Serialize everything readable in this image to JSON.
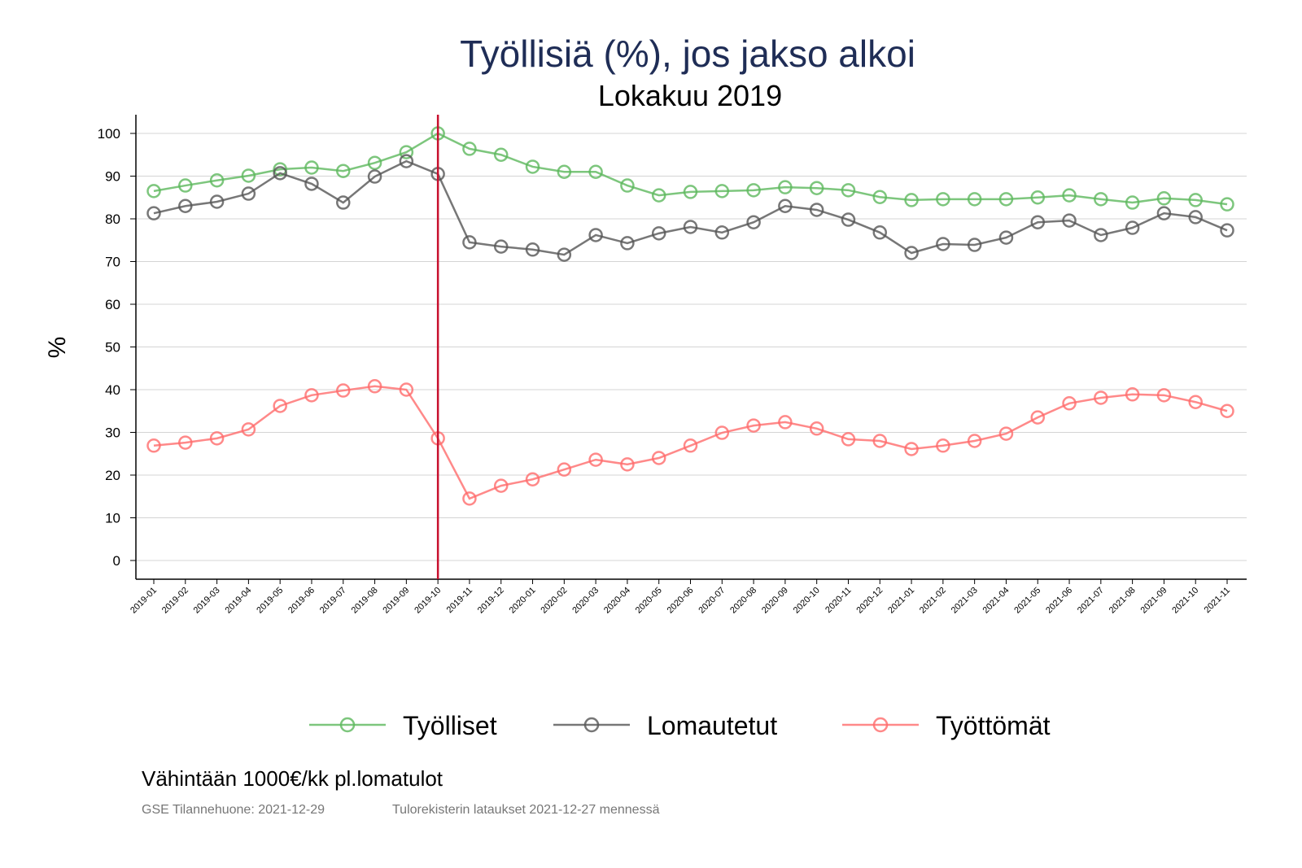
{
  "chart_data": {
    "type": "line",
    "title": "Työllisiä (%), jos jakso alkoi",
    "subtitle": "Lokakuu 2019",
    "xlabel": "",
    "ylabel": "%",
    "ylim": [
      -4,
      104
    ],
    "yticks": [
      0,
      10,
      20,
      30,
      40,
      50,
      60,
      70,
      80,
      90,
      100
    ],
    "grid": true,
    "legend_position": "bottom",
    "reference_line": {
      "x": "2019-10",
      "color": "#c8102e"
    },
    "categories": [
      "2019-01",
      "2019-02",
      "2019-03",
      "2019-04",
      "2019-05",
      "2019-06",
      "2019-07",
      "2019-08",
      "2019-09",
      "2019-10",
      "2019-11",
      "2019-12",
      "2020-01",
      "2020-02",
      "2020-03",
      "2020-04",
      "2020-05",
      "2020-06",
      "2020-07",
      "2020-08",
      "2020-09",
      "2020-10",
      "2020-11",
      "2020-12",
      "2021-01",
      "2021-02",
      "2021-03",
      "2021-04",
      "2021-05",
      "2021-06",
      "2021-07",
      "2021-08",
      "2021-09",
      "2021-10",
      "2021-11"
    ],
    "series": [
      {
        "name": "Työlliset",
        "color": "#5cb85c",
        "values": [
          86.5,
          87.8,
          89.0,
          90.1,
          91.6,
          92.0,
          91.2,
          93.1,
          95.6,
          100,
          96.4,
          95.0,
          92.2,
          91.0,
          91.0,
          87.8,
          85.5,
          86.3,
          86.5,
          86.7,
          87.4,
          87.2,
          86.7,
          85.1,
          84.4,
          84.6,
          84.6,
          84.6,
          85.0,
          85.5,
          84.6,
          83.8,
          84.8,
          84.4,
          83.4
        ]
      },
      {
        "name": "Lomautetut",
        "color": "#555555",
        "values": [
          81.3,
          83.0,
          84.0,
          85.9,
          90.7,
          88.2,
          83.8,
          89.9,
          93.5,
          90.5,
          74.5,
          73.5,
          72.8,
          71.6,
          76.2,
          74.3,
          76.6,
          78.1,
          76.8,
          79.2,
          83.0,
          82.1,
          79.8,
          76.8,
          72.0,
          74.1,
          73.9,
          75.6,
          79.2,
          79.6,
          76.2,
          77.9,
          81.3,
          80.4,
          77.3
        ]
      },
      {
        "name": "Työttömät",
        "color": "#ff6b6b",
        "values": [
          26.9,
          27.6,
          28.6,
          30.7,
          36.2,
          38.7,
          39.8,
          40.8,
          40.0,
          28.6,
          14.5,
          17.5,
          19.0,
          21.3,
          23.6,
          22.5,
          24.0,
          26.9,
          29.9,
          31.6,
          32.4,
          30.9,
          28.4,
          28.0,
          26.1,
          26.9,
          28.0,
          29.7,
          33.5,
          36.8,
          38.1,
          38.9,
          38.7,
          37.1,
          35.0
        ]
      }
    ]
  },
  "footer": {
    "note": "Vähintään 1000€/kk pl.lomatulot",
    "source_left": "GSE Tilannehuone: 2021-12-29",
    "source_right": "Tulorekisterin lataukset 2021-12-27 mennessä"
  }
}
